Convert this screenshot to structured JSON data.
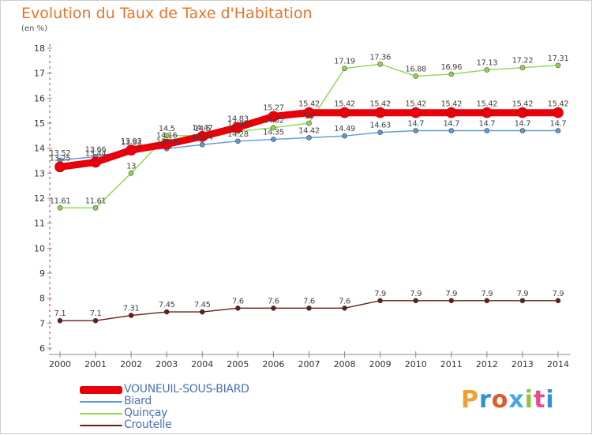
{
  "header": {
    "title": "Evolution du Taux de Taxe d'Habitation",
    "unit": "(en %)"
  },
  "brand": {
    "letters": [
      "P",
      "r",
      "o",
      "x",
      "i",
      "t",
      "i"
    ],
    "colors": [
      "#f0a030",
      "#2f8fd8",
      "#e05a2a",
      "#4aa8e0",
      "#8cc63f",
      "#e84a8a",
      "#2f8fd8"
    ]
  },
  "chart_data": {
    "type": "line",
    "title": "Evolution du Taux de Taxe d'Habitation",
    "ylabel": "(en %)",
    "xlabel": "",
    "ylim": [
      6,
      18
    ],
    "yticks": [
      6,
      7,
      8,
      9,
      10,
      11,
      12,
      13,
      14,
      15,
      16,
      17,
      18
    ],
    "grid": false,
    "legend_position": "bottom-left",
    "x": [
      "2000",
      "2001",
      "2002",
      "2003",
      "2004",
      "2005",
      "2006",
      "2007",
      "2008",
      "2009",
      "2010",
      "2011",
      "2012",
      "2013",
      "2014"
    ],
    "series": [
      {
        "name": "VOUNEUIL-SOUS-BIARD",
        "color": "#e8000b",
        "values": [
          13.25,
          13.44,
          13.92,
          14.16,
          14.47,
          14.83,
          15.27,
          15.42,
          15.42,
          15.42,
          15.42,
          15.42,
          15.42,
          15.42,
          15.42
        ],
        "labels": [
          "13.25",
          "13.44",
          "13.92",
          "14.16",
          "14.47",
          "14.83",
          "15.27",
          "15.42",
          "15.42",
          "15.42",
          "15.42",
          "15.42",
          "15.42",
          "15.42",
          "15.42"
        ]
      },
      {
        "name": "Biard",
        "color": "#5b9bd5",
        "values": [
          13.52,
          13.66,
          13.93,
          13.98,
          14.14,
          14.28,
          14.35,
          14.42,
          14.49,
          14.63,
          14.7,
          14.7,
          14.7,
          14.7,
          14.7
        ],
        "labels": [
          "13.52",
          "13.66",
          "13.93",
          "13.98",
          "14.14",
          "14.28",
          "14.35",
          "14.42",
          "14.49",
          "14.63",
          "14.7",
          "14.7",
          "14.7",
          "14.7",
          "14.7"
        ]
      },
      {
        "name": "Quinçay",
        "color": "#8cd84a",
        "values": [
          11.61,
          11.61,
          13.0,
          14.5,
          14.5,
          14.67,
          14.82,
          15.0,
          17.19,
          17.36,
          16.88,
          16.96,
          17.13,
          17.22,
          17.31
        ],
        "labels": [
          "11.61",
          "11.61",
          "13",
          "14.5",
          "14.5",
          "14.67",
          "14.82",
          "15",
          "17.19",
          "17.36",
          "16.88",
          "16.96",
          "17.13",
          "17.22",
          "17.31"
        ]
      },
      {
        "name": "Croutelle",
        "color": "#6b1a1a",
        "values": [
          7.1,
          7.1,
          7.31,
          7.45,
          7.45,
          7.6,
          7.6,
          7.6,
          7.6,
          7.9,
          7.9,
          7.9,
          7.9,
          7.9,
          7.9
        ],
        "labels": [
          "7.1",
          "7.1",
          "7.31",
          "7.45",
          "7.45",
          "7.6",
          "7.6",
          "7.6",
          "7.6",
          "7.9",
          "7.9",
          "7.9",
          "7.9",
          "7.9",
          "7.9"
        ]
      }
    ]
  }
}
